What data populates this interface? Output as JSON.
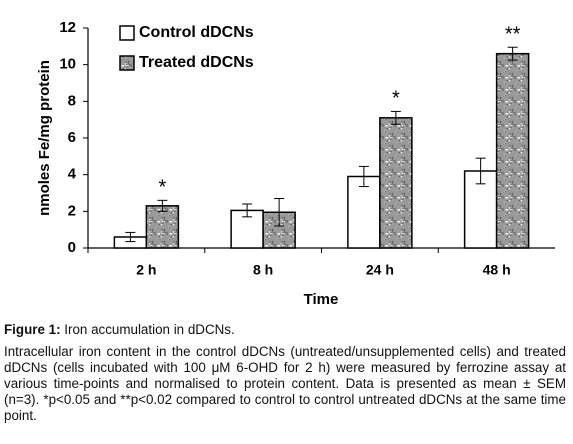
{
  "chart_data": {
    "type": "bar",
    "categories": [
      "2 h",
      "8 h",
      "24 h",
      "48 h"
    ],
    "series": [
      {
        "name": "Control dDCNs",
        "color": "#ffffff",
        "values": [
          0.6,
          2.05,
          3.9,
          4.2
        ],
        "errors": [
          0.25,
          0.35,
          0.55,
          0.7
        ]
      },
      {
        "name": "Treated dDCNs",
        "color": "#9a9a9a",
        "texture": "speckled",
        "values": [
          2.3,
          1.95,
          7.1,
          10.6
        ],
        "errors": [
          0.3,
          0.75,
          0.35,
          0.35
        ],
        "value_annotations": [
          "*",
          null,
          "*",
          "**"
        ]
      }
    ],
    "ylim": [
      0,
      12
    ],
    "yticks": [
      0,
      2,
      4,
      6,
      8,
      10,
      12
    ],
    "ylabel": "nmoles Fe/mg protein",
    "xlabel": "Time",
    "grid": false,
    "legend": "top-left"
  },
  "caption": {
    "label": "Figure 1:",
    "title": "Iron accumulation in dDCNs.",
    "text": "Intracellular iron content in the control dDCNs (untreated/unsupplemented cells) and treated dDCNs (cells incubated with 100 μM 6-OHD for 2 h) were measured by ferrozine assay at various time-points and normalised to protein content. Data is presented as mean ± SEM (n=3). *p<0.05 and **p<0.02 compared to control to control untreated dDCNs at the same time point."
  }
}
